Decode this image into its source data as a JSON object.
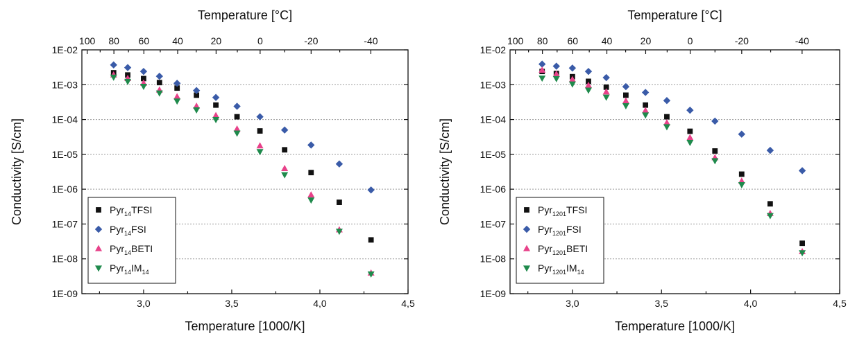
{
  "chart_data": [
    {
      "type": "scatter",
      "xlabel": "Temperature [1000/K]",
      "ylabel": "Conductivity [S/cm]",
      "x2label": "Temperature [°C]",
      "xlim": [
        2.65,
        4.5
      ],
      "ylim": [
        1e-09,
        0.01
      ],
      "yscale": "log",
      "xticks": [
        3.0,
        3.5,
        4.0,
        4.5
      ],
      "xtick_labels": [
        "3,0",
        "3,5",
        "4,0",
        "4,5"
      ],
      "yticks": [
        1e-09,
        1e-08,
        1e-07,
        1e-06,
        1e-05,
        0.0001,
        0.001,
        0.01
      ],
      "ytick_labels": [
        "1E-09",
        "1E-08",
        "1E-07",
        "1E-06",
        "1E-05",
        "1E-04",
        "1E-03",
        "1E-02"
      ],
      "x2ticks": [
        100,
        80,
        60,
        40,
        20,
        0,
        -20,
        -40
      ],
      "x2tick_labels": [
        "100",
        "80",
        "60",
        "40",
        "20",
        "0",
        "-20",
        "-40"
      ],
      "grid": "horizontal dotted",
      "legend_position": "bottom-left",
      "x": [
        2.83,
        2.91,
        3.0,
        3.09,
        3.19,
        3.3,
        3.41,
        3.53,
        3.66,
        3.8,
        3.95,
        4.11,
        4.29
      ],
      "series": [
        {
          "name": "Pyr14TFSI",
          "label_base": "Pyr",
          "label_sub": "14",
          "label_rest": "TFSI",
          "label_sub2": "",
          "marker": "square",
          "color": "#111111",
          "values": [
            0.0022,
            0.0019,
            0.0015,
            0.00115,
            0.0008,
            0.0005,
            0.00026,
            0.00012,
            4.7e-05,
            1.35e-05,
            3e-06,
            4.2e-07,
            3.5e-08
          ]
        },
        {
          "name": "Pyr14FSI",
          "label_base": "Pyr",
          "label_sub": "14",
          "label_rest": "FSI",
          "label_sub2": "",
          "marker": "diamond",
          "color": "#3a5ba8",
          "values": [
            0.0037,
            0.0031,
            0.0024,
            0.00175,
            0.0011,
            0.00068,
            0.00043,
            0.00024,
            0.00012,
            5e-05,
            1.85e-05,
            5.3e-06,
            9.5e-07
          ]
        },
        {
          "name": "Pyr14BETI",
          "label_base": "Pyr",
          "label_sub": "14",
          "label_rest": "BETI",
          "label_sub2": "",
          "marker": "triangle-up",
          "color": "#e8428a",
          "values": [
            0.0019,
            0.0015,
            0.0011,
            0.0007,
            0.00045,
            0.00024,
            0.00013,
            5.3e-05,
            1.75e-05,
            3.9e-06,
            6.8e-07,
            6.8e-08,
            3.9e-09
          ]
        },
        {
          "name": "Pyr14IM14",
          "label_base": "Pyr",
          "label_sub": "14",
          "label_rest": "IM",
          "label_sub2": "14",
          "marker": "triangle-down",
          "color": "#1f8a4c",
          "values": [
            0.00165,
            0.00125,
            0.0009,
            0.00058,
            0.00034,
            0.00019,
            0.0001,
            4.1e-05,
            1.2e-05,
            2.6e-06,
            4.9e-07,
            6.2e-08,
            3.7e-09
          ]
        }
      ]
    },
    {
      "type": "scatter",
      "xlabel": "Temperature [1000/K]",
      "ylabel": "Conductivity [S/cm]",
      "x2label": "Temperature [°C]",
      "xlim": [
        2.65,
        4.5
      ],
      "ylim": [
        1e-09,
        0.01
      ],
      "yscale": "log",
      "xticks": [
        3.0,
        3.5,
        4.0,
        4.5
      ],
      "xtick_labels": [
        "3,0",
        "3,5",
        "4,0",
        "4,5"
      ],
      "yticks": [
        1e-09,
        1e-08,
        1e-07,
        1e-06,
        1e-05,
        0.0001,
        0.001,
        0.01
      ],
      "ytick_labels": [
        "1E-09",
        "1E-08",
        "1E-07",
        "1E-06",
        "1E-05",
        "1E-04",
        "1E-03",
        "1E-02"
      ],
      "x2ticks": [
        100,
        80,
        60,
        40,
        20,
        0,
        -20,
        -40
      ],
      "x2tick_labels": [
        "100",
        "80",
        "60",
        "40",
        "20",
        "0",
        "-20",
        "-40"
      ],
      "grid": "horizontal dotted",
      "legend_position": "bottom-left",
      "x": [
        2.83,
        2.91,
        3.0,
        3.09,
        3.19,
        3.3,
        3.41,
        3.53,
        3.66,
        3.8,
        3.95,
        4.11,
        4.29
      ],
      "series": [
        {
          "name": "Pyr1201TFSI",
          "label_base": "Pyr",
          "label_sub": "1201",
          "label_rest": "TFSI",
          "label_sub2": "",
          "marker": "square",
          "color": "#111111",
          "values": [
            0.0024,
            0.0021,
            0.0017,
            0.00125,
            0.00085,
            0.0005,
            0.00026,
            0.00012,
            4.6e-05,
            1.25e-05,
            2.7e-06,
            3.8e-07,
            2.8e-08
          ]
        },
        {
          "name": "Pyr1201FSI",
          "label_base": "Pyr",
          "label_sub": "1201",
          "label_rest": "FSI",
          "label_sub2": "",
          "marker": "diamond",
          "color": "#3a5ba8",
          "values": [
            0.0039,
            0.0034,
            0.003,
            0.0024,
            0.0016,
            0.00088,
            0.0006,
            0.00035,
            0.000185,
            9e-05,
            3.8e-05,
            1.3e-05,
            3.4e-06
          ]
        },
        {
          "name": "Pyr1201BETI",
          "label_base": "Pyr",
          "label_sub": "1201",
          "label_rest": "BETI",
          "label_sub2": "",
          "marker": "triangle-up",
          "color": "#e8428a",
          "values": [
            0.0026,
            0.002,
            0.0014,
            0.00095,
            0.00062,
            0.00034,
            0.00018,
            8e-05,
            3e-05,
            8e-06,
            1.7e-06,
            2e-07,
            1.6e-08
          ]
        },
        {
          "name": "Pyr1201IM14",
          "label_base": "Pyr",
          "label_sub": "1201",
          "label_rest": "IM",
          "label_sub2": "14",
          "marker": "triangle-down",
          "color": "#1f8a4c",
          "values": [
            0.00155,
            0.0015,
            0.00105,
            0.0007,
            0.00044,
            0.00025,
            0.000135,
            6.2e-05,
            2.2e-05,
            6.6e-06,
            1.35e-06,
            1.75e-07,
            1.5e-08
          ]
        }
      ]
    }
  ]
}
